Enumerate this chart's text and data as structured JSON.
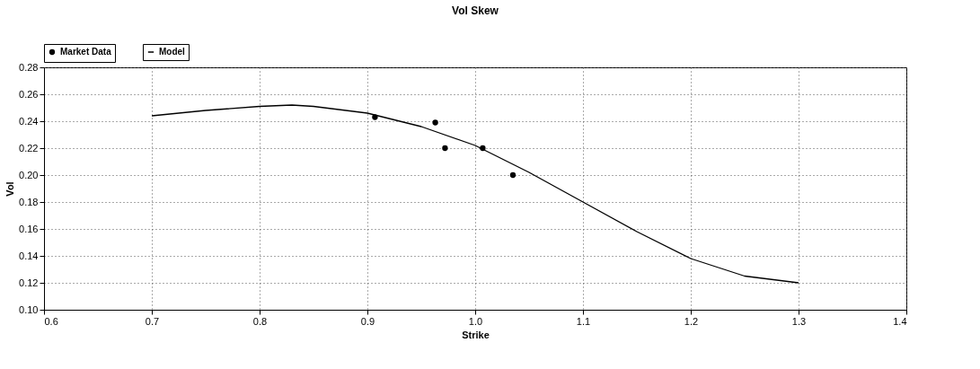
{
  "chart_data": {
    "type": "scatter",
    "title": "Vol Skew",
    "xlabel": "Strike",
    "ylabel": "Vol",
    "series": [
      {
        "name": "Market Data",
        "color": "#000000",
        "marker": "circle",
        "x": [
          0.907,
          0.963,
          0.972,
          1.007,
          1.035
        ],
        "values": [
          0.243,
          0.239,
          0.22,
          0.22,
          0.2
        ]
      },
      {
        "name": "Model",
        "type": "line",
        "color": "#000000",
        "marker": "none",
        "line_style": "solid",
        "x": [
          0.7,
          0.75,
          0.8,
          0.83,
          0.85,
          0.9,
          0.95,
          1.0,
          1.05,
          1.1,
          1.15,
          1.2,
          1.25,
          1.3
        ],
        "values": [
          0.244,
          0.248,
          0.251,
          0.252,
          0.251,
          0.246,
          0.236,
          0.222,
          0.202,
          0.18,
          0.158,
          0.138,
          0.125,
          0.12
        ]
      }
    ],
    "xlim": [
      0.6,
      1.4
    ],
    "xticks": [
      0.6,
      0.7,
      0.8,
      0.9,
      {
        "value": 1,
        "label": "1.0"
      },
      1.1,
      1.2,
      1.3,
      1.4
    ],
    "ylim": [
      0.1,
      0.28
    ],
    "yticks": [
      {
        "value": 0.1,
        "label": "0.10"
      },
      0.12,
      0.14,
      0.16,
      0.18,
      {
        "value": 0.2,
        "label": "0.20"
      },
      0.22,
      0.24,
      0.26,
      0.28
    ],
    "grid": true,
    "legend": "top left"
  }
}
